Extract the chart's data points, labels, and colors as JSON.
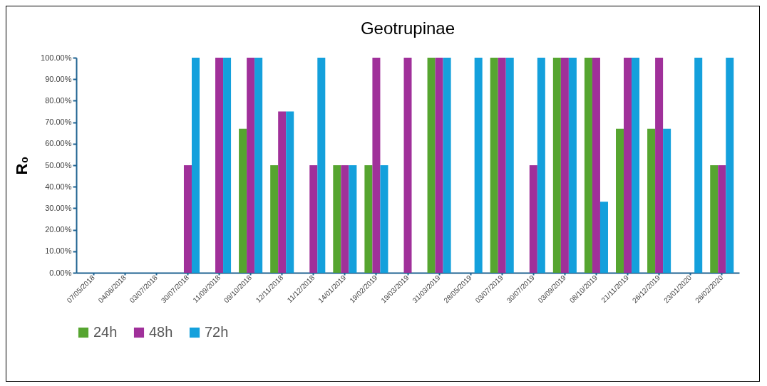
{
  "chart_data": {
    "type": "bar",
    "title": "Geotrupinae",
    "ylabel": "R₀",
    "categories": [
      "07/05/2018",
      "04/06/2018",
      "03/07/2018",
      "30/07/2018",
      "11/09/2018",
      "09/10/2018",
      "12/11/2018",
      "11/12/2018",
      "14/01/2019",
      "19/02/2019",
      "19/03/2019",
      "31/03/2019",
      "28/05/2019",
      "03/07/2019",
      "30/07/2019",
      "03/09/2019",
      "08/10/2019",
      "21/11/2019",
      "26/12/2019",
      "23/01/2020",
      "26/02/2020"
    ],
    "series": [
      {
        "name": "24h",
        "color": "#56a530",
        "values": [
          0,
          0,
          0,
          0,
          0,
          67,
          50,
          0,
          50,
          50,
          0,
          100,
          0,
          100,
          0,
          100,
          100,
          67,
          67,
          0,
          50
        ]
      },
      {
        "name": "48h",
        "color": "#a0309a",
        "values": [
          0,
          0,
          0,
          50,
          100,
          100,
          75,
          50,
          50,
          100,
          100,
          100,
          0,
          100,
          50,
          100,
          100,
          100,
          100,
          0,
          50
        ]
      },
      {
        "name": "72h",
        "color": "#14a0dc",
        "values": [
          0,
          0,
          0,
          100,
          100,
          100,
          75,
          100,
          50,
          50,
          0,
          100,
          100,
          100,
          100,
          100,
          33,
          100,
          67,
          100,
          100
        ]
      }
    ],
    "ylim": [
      0,
      100
    ],
    "yticks": [
      {
        "value": 0,
        "label": "0.00%"
      },
      {
        "value": 10,
        "label": "10.00%"
      },
      {
        "value": 20,
        "label": "20.00%"
      },
      {
        "value": 30,
        "label": "30.00%"
      },
      {
        "value": 40,
        "label": "40.00%"
      },
      {
        "value": 50,
        "label": "50.00%"
      },
      {
        "value": 60,
        "label": "60.00%"
      },
      {
        "value": 70,
        "label": "70.00%"
      },
      {
        "value": 80,
        "label": "80.00%"
      },
      {
        "value": 90,
        "label": "90.00%"
      },
      {
        "value": 100,
        "label": "100.00%"
      }
    ],
    "grid": false,
    "legend": "bottom"
  }
}
